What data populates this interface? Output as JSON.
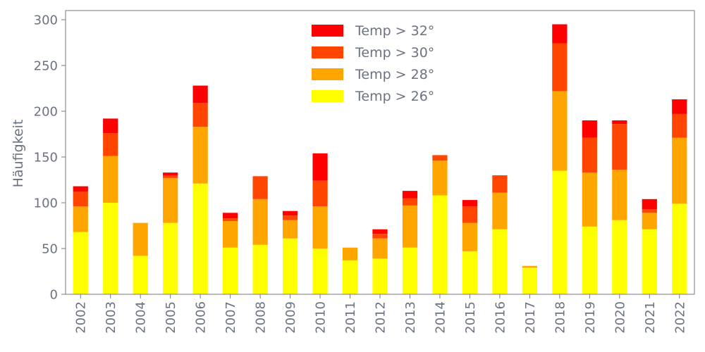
{
  "chart_data": {
    "type": "bar",
    "stacked": true,
    "title": "",
    "xlabel": "",
    "ylabel": "Häufigkeit",
    "ylim": [
      0,
      310
    ],
    "yticks": [
      0,
      50,
      100,
      150,
      200,
      250,
      300
    ],
    "grid": false,
    "legend_position": "top-center",
    "categories": [
      "2002",
      "2003",
      "2004",
      "2005",
      "2006",
      "2007",
      "2008",
      "2009",
      "2010",
      "2011",
      "2012",
      "2013",
      "2014",
      "2015",
      "2016",
      "2017",
      "2018",
      "2019",
      "2020",
      "2021",
      "2022"
    ],
    "series": [
      {
        "name": "Temp > 26°",
        "color": "#ffff00",
        "values": [
          68,
          100,
          42,
          78,
          121,
          51,
          54,
          61,
          50,
          37,
          39,
          51,
          108,
          47,
          71,
          29,
          135,
          74,
          81,
          71,
          99
        ]
      },
      {
        "name": "Temp > 28°",
        "color": "#ffa500",
        "values": [
          28,
          51,
          36,
          49,
          62,
          29,
          50,
          20,
          46,
          14,
          22,
          46,
          38,
          31,
          40,
          2,
          87,
          59,
          55,
          18,
          72
        ]
      },
      {
        "name": "Temp > 30°",
        "color": "#ff4500",
        "values": [
          16,
          25,
          0,
          3,
          26,
          3,
          25,
          5,
          28,
          0,
          5,
          8,
          6,
          18,
          19,
          0,
          52,
          38,
          50,
          4,
          26
        ]
      },
      {
        "name": "Temp > 32°",
        "color": "#ff0000",
        "values": [
          6,
          16,
          0,
          3,
          19,
          6,
          0,
          5,
          30,
          0,
          5,
          8,
          0,
          7,
          0,
          0,
          21,
          19,
          4,
          11,
          16
        ]
      }
    ]
  }
}
